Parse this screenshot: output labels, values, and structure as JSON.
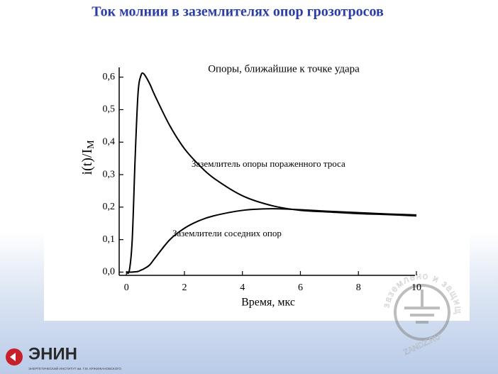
{
  "slide": {
    "title": "Ток молнии в заземлителях опор грозотросов",
    "logo": "ЭНИН",
    "logo_caption": "ЭНЕРГЕТИЧЕСКИЙ ИНСТИТУТ им. Г.М. КРЖИЖАНОВСКОГО",
    "watermark_top": "заземлено и защищено",
    "watermark_bottom": "ZANDZ.RU"
  },
  "chart_data": {
    "type": "line",
    "subtitle": "Опоры, ближайшие к точке удара",
    "x_label": "Время,  мкс",
    "y_label": "i(t)/I",
    "y_label_subscript": "M",
    "x": [
      0,
      0.1,
      0.2,
      0.3,
      0.4,
      0.5,
      0.6,
      0.8,
      1,
      1.5,
      2,
      2.5,
      3,
      4,
      5,
      6,
      7,
      8,
      9,
      10
    ],
    "series": [
      {
        "name": "Заземлитель опоры пораженного троса",
        "color": "#000000",
        "values": [
          0,
          0.005,
          0.1,
          0.35,
          0.55,
          0.605,
          0.61,
          0.58,
          0.54,
          0.45,
          0.38,
          0.33,
          0.29,
          0.235,
          0.205,
          0.19,
          0.185,
          0.18,
          0.177,
          0.173
        ]
      },
      {
        "name": "Заземлители соседних опор",
        "color": "#000000",
        "values": [
          0,
          0,
          0,
          0.001,
          0.002,
          0.006,
          0.01,
          0.022,
          0.045,
          0.1,
          0.135,
          0.158,
          0.173,
          0.19,
          0.195,
          0.192,
          0.187,
          0.183,
          0.179,
          0.176
        ]
      }
    ],
    "xlim": [
      -0.25,
      10
    ],
    "ylim": [
      -0.01,
      0.63
    ],
    "xticks": [
      0,
      2,
      4,
      6,
      8,
      10
    ],
    "yticks": [
      {
        "value": 0,
        "label": "0,0"
      },
      {
        "value": 0.1,
        "label": "0,1"
      },
      {
        "value": 0.2,
        "label": "0,2"
      },
      {
        "value": 0.3,
        "label": "0,3"
      },
      {
        "value": 0.4,
        "label": "0,4"
      },
      {
        "value": 0.5,
        "label": "0,5"
      },
      {
        "value": 0.6,
        "label": "0,6"
      }
    ],
    "grid": false
  }
}
